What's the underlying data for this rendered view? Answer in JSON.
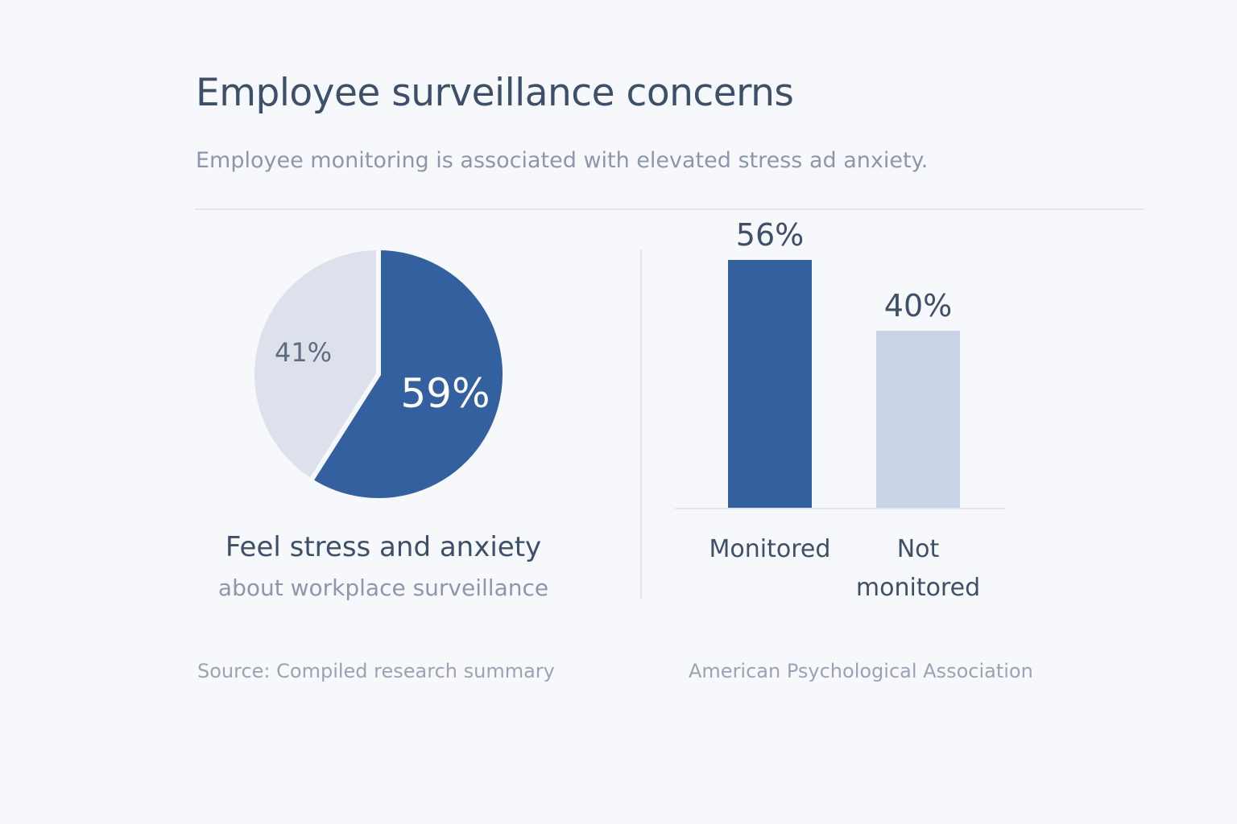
{
  "header": {
    "title": "Employee surveillance concerns",
    "subtitle": "Employee monitoring is associated with elevated stress ad anxiety."
  },
  "pie": {
    "caption_main": "Feel stress and anxiety",
    "caption_sub": "about workplace surveillance"
  },
  "footer": {
    "source_left": "Source: Compiled research summary",
    "source_right": "American Psychological Association"
  },
  "chart_data": [
    {
      "type": "pie",
      "slices": [
        {
          "label": "59%",
          "value": 59,
          "color": "#33609e"
        },
        {
          "label": "41%",
          "value": 41,
          "color": "#dde1ec"
        }
      ]
    },
    {
      "type": "bar",
      "categories": [
        "Monitored",
        "Not monitored"
      ],
      "values": [
        56,
        40
      ],
      "value_labels": [
        "56%",
        "40%"
      ],
      "colors": [
        "#33609e",
        "#c9d3e6"
      ],
      "ylim": [
        0,
        60
      ],
      "grid": false
    }
  ]
}
